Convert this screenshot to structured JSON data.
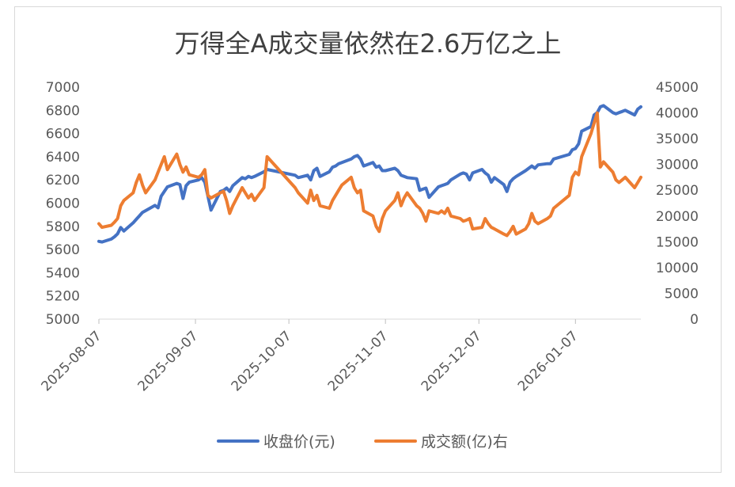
{
  "chart_data": {
    "type": "line",
    "title": "万得全A成交量依然在2.6万亿之上",
    "dual_axis": true,
    "x_is_dates": true,
    "x_ticks": [
      "2025-08-07",
      "2025-09-07",
      "2025-10-07",
      "2025-11-07",
      "2025-12-07",
      "2026-01-07"
    ],
    "y_left": {
      "min": 5000,
      "max": 7000,
      "ticks": [
        5000,
        5200,
        5400,
        5600,
        5800,
        6000,
        6200,
        6400,
        6600,
        6800,
        7000
      ]
    },
    "y_right": {
      "min": 0,
      "max": 45000,
      "ticks": [
        0,
        5000,
        10000,
        15000,
        20000,
        25000,
        30000,
        35000,
        40000,
        45000
      ]
    },
    "grid": false,
    "legend_position": "bottom",
    "series": [
      {
        "name": "收盘价(元)",
        "axis": "left",
        "color": "#4472C4",
        "points": [
          [
            "2025-08-07",
            5670
          ],
          [
            "2025-08-08",
            5665
          ],
          [
            "2025-08-11",
            5690
          ],
          [
            "2025-08-12",
            5710
          ],
          [
            "2025-08-13",
            5735
          ],
          [
            "2025-08-14",
            5790
          ],
          [
            "2025-08-15",
            5760
          ],
          [
            "2025-08-18",
            5830
          ],
          [
            "2025-08-19",
            5860
          ],
          [
            "2025-08-20",
            5890
          ],
          [
            "2025-08-21",
            5920
          ],
          [
            "2025-08-22",
            5935
          ],
          [
            "2025-08-25",
            5980
          ],
          [
            "2025-08-26",
            5960
          ],
          [
            "2025-08-27",
            6060
          ],
          [
            "2025-08-28",
            6100
          ],
          [
            "2025-08-29",
            6140
          ],
          [
            "2025-09-01",
            6170
          ],
          [
            "2025-09-02",
            6160
          ],
          [
            "2025-09-03",
            6040
          ],
          [
            "2025-09-04",
            6150
          ],
          [
            "2025-09-05",
            6180
          ],
          [
            "2025-09-08",
            6200
          ],
          [
            "2025-09-09",
            6220
          ],
          [
            "2025-09-10",
            6180
          ],
          [
            "2025-09-11",
            6060
          ],
          [
            "2025-09-12",
            5940
          ],
          [
            "2025-09-15",
            6100
          ],
          [
            "2025-09-16",
            6110
          ],
          [
            "2025-09-17",
            6130
          ],
          [
            "2025-09-18",
            6100
          ],
          [
            "2025-09-19",
            6150
          ],
          [
            "2025-09-22",
            6220
          ],
          [
            "2025-09-23",
            6210
          ],
          [
            "2025-09-24",
            6230
          ],
          [
            "2025-09-25",
            6220
          ],
          [
            "2025-09-26",
            6230
          ],
          [
            "2025-09-29",
            6270
          ],
          [
            "2025-09-30",
            6290
          ],
          [
            "2025-10-09",
            6240
          ],
          [
            "2025-10-10",
            6220
          ],
          [
            "2025-10-13",
            6240
          ],
          [
            "2025-10-14",
            6200
          ],
          [
            "2025-10-15",
            6280
          ],
          [
            "2025-10-16",
            6300
          ],
          [
            "2025-10-17",
            6230
          ],
          [
            "2025-10-20",
            6270
          ],
          [
            "2025-10-21",
            6310
          ],
          [
            "2025-10-22",
            6320
          ],
          [
            "2025-10-23",
            6340
          ],
          [
            "2025-10-24",
            6350
          ],
          [
            "2025-10-27",
            6380
          ],
          [
            "2025-10-28",
            6400
          ],
          [
            "2025-10-29",
            6410
          ],
          [
            "2025-10-30",
            6380
          ],
          [
            "2025-10-31",
            6320
          ],
          [
            "2025-11-03",
            6350
          ],
          [
            "2025-11-04",
            6310
          ],
          [
            "2025-11-05",
            6320
          ],
          [
            "2025-11-06",
            6280
          ],
          [
            "2025-11-07",
            6280
          ],
          [
            "2025-11-10",
            6300
          ],
          [
            "2025-11-11",
            6280
          ],
          [
            "2025-11-12",
            6240
          ],
          [
            "2025-11-13",
            6230
          ],
          [
            "2025-11-14",
            6220
          ],
          [
            "2025-11-17",
            6210
          ],
          [
            "2025-11-18",
            6110
          ],
          [
            "2025-11-19",
            6120
          ],
          [
            "2025-11-20",
            6130
          ],
          [
            "2025-11-21",
            6050
          ],
          [
            "2025-11-24",
            6140
          ],
          [
            "2025-11-25",
            6150
          ],
          [
            "2025-11-26",
            6160
          ],
          [
            "2025-11-27",
            6170
          ],
          [
            "2025-11-28",
            6200
          ],
          [
            "2025-12-01",
            6250
          ],
          [
            "2025-12-02",
            6260
          ],
          [
            "2025-12-03",
            6250
          ],
          [
            "2025-12-04",
            6200
          ],
          [
            "2025-12-05",
            6260
          ],
          [
            "2025-12-08",
            6290
          ],
          [
            "2025-12-09",
            6260
          ],
          [
            "2025-12-10",
            6240
          ],
          [
            "2025-12-11",
            6180
          ],
          [
            "2025-12-12",
            6220
          ],
          [
            "2025-12-15",
            6160
          ],
          [
            "2025-12-16",
            6100
          ],
          [
            "2025-12-17",
            6180
          ],
          [
            "2025-12-18",
            6210
          ],
          [
            "2025-12-19",
            6230
          ],
          [
            "2025-12-22",
            6280
          ],
          [
            "2025-12-23",
            6300
          ],
          [
            "2025-12-24",
            6320
          ],
          [
            "2025-12-25",
            6300
          ],
          [
            "2025-12-26",
            6330
          ],
          [
            "2025-12-29",
            6340
          ],
          [
            "2025-12-30",
            6340
          ],
          [
            "2025-12-31",
            6380
          ],
          [
            "2026-01-05",
            6420
          ],
          [
            "2026-01-06",
            6460
          ],
          [
            "2026-01-07",
            6470
          ],
          [
            "2026-01-08",
            6510
          ],
          [
            "2026-01-09",
            6620
          ],
          [
            "2026-01-12",
            6660
          ],
          [
            "2026-01-13",
            6760
          ],
          [
            "2026-01-14",
            6780
          ],
          [
            "2026-01-15",
            6830
          ],
          [
            "2026-01-16",
            6840
          ],
          [
            "2026-01-19",
            6780
          ],
          [
            "2026-01-20",
            6770
          ],
          [
            "2026-01-21",
            6780
          ],
          [
            "2026-01-22",
            6790
          ],
          [
            "2026-01-23",
            6800
          ],
          [
            "2026-01-26",
            6760
          ],
          [
            "2026-01-27",
            6810
          ],
          [
            "2026-01-28",
            6830
          ]
        ]
      },
      {
        "name": "成交额(亿)右",
        "axis": "right",
        "color": "#ED7D31",
        "points": [
          [
            "2025-08-07",
            18500
          ],
          [
            "2025-08-08",
            17800
          ],
          [
            "2025-08-11",
            18200
          ],
          [
            "2025-08-12",
            18800
          ],
          [
            "2025-08-13",
            19500
          ],
          [
            "2025-08-14",
            22000
          ],
          [
            "2025-08-15",
            23000
          ],
          [
            "2025-08-18",
            24500
          ],
          [
            "2025-08-19",
            26500
          ],
          [
            "2025-08-20",
            28000
          ],
          [
            "2025-08-21",
            26000
          ],
          [
            "2025-08-22",
            24500
          ],
          [
            "2025-08-25",
            27000
          ],
          [
            "2025-08-26",
            28500
          ],
          [
            "2025-08-27",
            30000
          ],
          [
            "2025-08-28",
            31500
          ],
          [
            "2025-08-29",
            29000
          ],
          [
            "2025-09-01",
            32000
          ],
          [
            "2025-09-02",
            30000
          ],
          [
            "2025-09-03",
            28500
          ],
          [
            "2025-09-04",
            29500
          ],
          [
            "2025-09-05",
            28000
          ],
          [
            "2025-09-08",
            27500
          ],
          [
            "2025-09-09",
            28000
          ],
          [
            "2025-09-10",
            29000
          ],
          [
            "2025-09-11",
            24000
          ],
          [
            "2025-09-12",
            23500
          ],
          [
            "2025-09-15",
            24500
          ],
          [
            "2025-09-16",
            24800
          ],
          [
            "2025-09-17",
            23000
          ],
          [
            "2025-09-18",
            20500
          ],
          [
            "2025-09-19",
            22000
          ],
          [
            "2025-09-22",
            25500
          ],
          [
            "2025-09-23",
            24500
          ],
          [
            "2025-09-24",
            23500
          ],
          [
            "2025-09-25",
            24200
          ],
          [
            "2025-09-26",
            23000
          ],
          [
            "2025-09-29",
            25500
          ],
          [
            "2025-09-30",
            31500
          ],
          [
            "2025-10-09",
            25500
          ],
          [
            "2025-10-10",
            24500
          ],
          [
            "2025-10-13",
            22500
          ],
          [
            "2025-10-14",
            25000
          ],
          [
            "2025-10-15",
            23000
          ],
          [
            "2025-10-16",
            24000
          ],
          [
            "2025-10-17",
            22000
          ],
          [
            "2025-10-20",
            21500
          ],
          [
            "2025-10-21",
            23000
          ],
          [
            "2025-10-22",
            24000
          ],
          [
            "2025-10-23",
            25000
          ],
          [
            "2025-10-24",
            26000
          ],
          [
            "2025-10-27",
            27500
          ],
          [
            "2025-10-28",
            25500
          ],
          [
            "2025-10-29",
            24500
          ],
          [
            "2025-10-30",
            25000
          ],
          [
            "2025-10-31",
            21000
          ],
          [
            "2025-11-03",
            20000
          ],
          [
            "2025-11-04",
            18000
          ],
          [
            "2025-11-05",
            17000
          ],
          [
            "2025-11-06",
            19500
          ],
          [
            "2025-11-07",
            21000
          ],
          [
            "2025-11-10",
            23000
          ],
          [
            "2025-11-11",
            24500
          ],
          [
            "2025-11-12",
            22000
          ],
          [
            "2025-11-13",
            23500
          ],
          [
            "2025-11-14",
            24500
          ],
          [
            "2025-11-17",
            22000
          ],
          [
            "2025-11-18",
            21500
          ],
          [
            "2025-11-19",
            20500
          ],
          [
            "2025-11-20",
            19000
          ],
          [
            "2025-11-21",
            21000
          ],
          [
            "2025-11-24",
            20500
          ],
          [
            "2025-11-25",
            21000
          ],
          [
            "2025-11-26",
            20500
          ],
          [
            "2025-11-27",
            21500
          ],
          [
            "2025-11-28",
            20000
          ],
          [
            "2025-12-01",
            19500
          ],
          [
            "2025-12-02",
            19000
          ],
          [
            "2025-12-03",
            19200
          ],
          [
            "2025-12-04",
            19500
          ],
          [
            "2025-12-05",
            17500
          ],
          [
            "2025-12-08",
            17800
          ],
          [
            "2025-12-09",
            19500
          ],
          [
            "2025-12-10",
            18500
          ],
          [
            "2025-12-11",
            17800
          ],
          [
            "2025-12-12",
            17500
          ],
          [
            "2025-12-15",
            16500
          ],
          [
            "2025-12-16",
            16200
          ],
          [
            "2025-12-17",
            17000
          ],
          [
            "2025-12-18",
            18000
          ],
          [
            "2025-12-19",
            16500
          ],
          [
            "2025-12-22",
            17500
          ],
          [
            "2025-12-23",
            18500
          ],
          [
            "2025-12-24",
            20500
          ],
          [
            "2025-12-25",
            19000
          ],
          [
            "2025-12-26",
            18500
          ],
          [
            "2025-12-29",
            19500
          ],
          [
            "2025-12-30",
            20000
          ],
          [
            "2025-12-31",
            21500
          ],
          [
            "2026-01-05",
            24000
          ],
          [
            "2026-01-06",
            27500
          ],
          [
            "2026-01-07",
            28500
          ],
          [
            "2026-01-08",
            28000
          ],
          [
            "2026-01-09",
            31500
          ],
          [
            "2026-01-12",
            36000
          ],
          [
            "2026-01-13",
            38000
          ],
          [
            "2026-01-14",
            40000
          ],
          [
            "2026-01-15",
            29500
          ],
          [
            "2026-01-16",
            30500
          ],
          [
            "2026-01-19",
            28500
          ],
          [
            "2026-01-20",
            27000
          ],
          [
            "2026-01-21",
            26500
          ],
          [
            "2026-01-22",
            27000
          ],
          [
            "2026-01-23",
            27500
          ],
          [
            "2026-01-26",
            25500
          ],
          [
            "2026-01-27",
            26500
          ],
          [
            "2026-01-28",
            27500
          ]
        ]
      }
    ]
  }
}
